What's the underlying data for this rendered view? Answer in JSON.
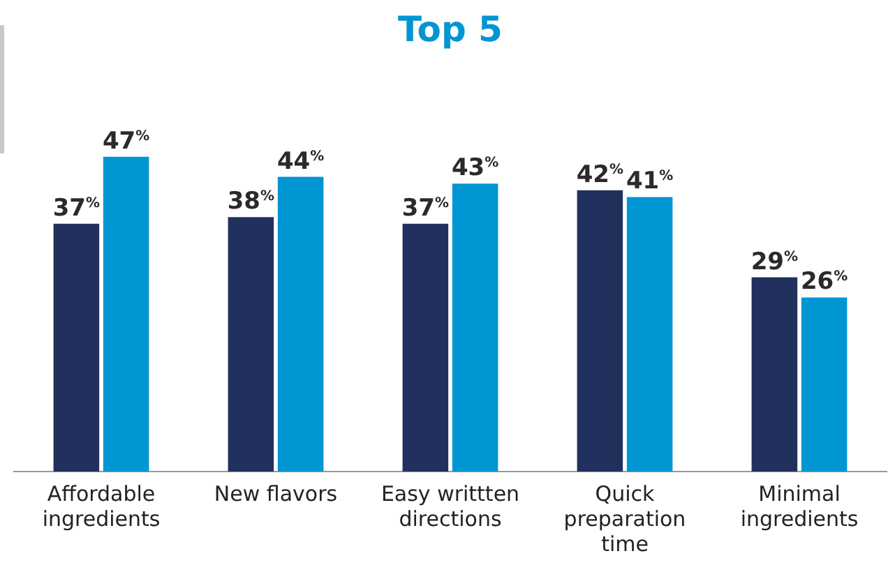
{
  "chart_data": {
    "type": "bar",
    "title": "Top 5",
    "categories": [
      "Affordable ingredients",
      "New flavors",
      "Easy writtten directions",
      "Quick preparation time",
      "Minimal ingredients"
    ],
    "series": [
      {
        "color": "#22305e",
        "values": [
          37,
          38,
          37,
          42,
          29
        ],
        "value_labels": [
          "37%",
          "38%",
          "37%",
          "42%",
          "29%"
        ]
      },
      {
        "color": "#0095d3",
        "values": [
          47,
          44,
          43,
          41,
          26
        ],
        "value_labels": [
          "47%",
          "44%",
          "43%",
          "41%",
          "26%"
        ]
      }
    ],
    "grid": false,
    "legend": false
  }
}
